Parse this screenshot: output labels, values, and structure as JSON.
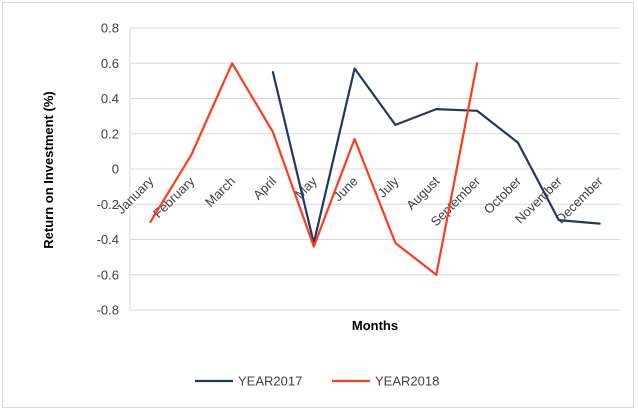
{
  "chart_data": {
    "type": "line",
    "title": "",
    "xlabel": "Months",
    "ylabel": "Return on Investment (%)",
    "ylim": [
      -0.8,
      0.8
    ],
    "yticks": [
      0.8,
      0.6,
      0.4,
      0.2,
      0,
      -0.2,
      -0.4,
      -0.6,
      -0.8
    ],
    "categories": [
      "January",
      "February",
      "March",
      "April",
      "May",
      "June",
      "July",
      "August",
      "September",
      "October",
      "November",
      "December"
    ],
    "grid": "horizontal",
    "legend_position": "bottom",
    "series": [
      {
        "name": "YEAR2017",
        "color": "#203864",
        "values": [
          null,
          null,
          null,
          0.55,
          -0.42,
          0.57,
          0.25,
          0.34,
          0.33,
          0.15,
          -0.29,
          -0.31
        ]
      },
      {
        "name": "YEAR2018",
        "color": "#ff3b1f",
        "values": [
          -0.3,
          0.08,
          0.6,
          0.21,
          -0.44,
          0.17,
          -0.42,
          -0.6,
          0.6,
          null,
          null,
          null
        ]
      }
    ]
  }
}
